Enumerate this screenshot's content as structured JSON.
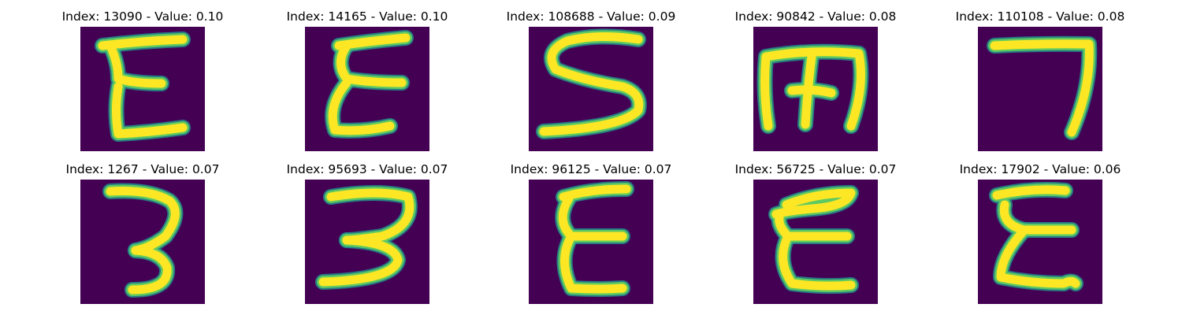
{
  "figure": {
    "background": "#ffffff",
    "text_color": "#000000",
    "colormap": "viridis",
    "colormap_low": "#440154",
    "colormap_high": "#fde725",
    "panels": [
      {
        "title": "Index: 13090 - Value: 0.10",
        "index": 13090,
        "value": 0.1,
        "glyph": "E"
      },
      {
        "title": "Index: 14165 - Value: 0.10",
        "index": 14165,
        "value": 0.1,
        "glyph": "E"
      },
      {
        "title": "Index: 108688 - Value: 0.09",
        "index": 108688,
        "value": 0.09,
        "glyph": "S"
      },
      {
        "title": "Index: 90842 - Value: 0.08",
        "index": 90842,
        "value": 0.08,
        "glyph": "m"
      },
      {
        "title": "Index: 110108 - Value: 0.08",
        "index": 110108,
        "value": 0.08,
        "glyph": "7"
      },
      {
        "title": "Index: 1267 - Value: 0.07",
        "index": 1267,
        "value": 0.07,
        "glyph": "3"
      },
      {
        "title": "Index: 95693 - Value: 0.07",
        "index": 95693,
        "value": 0.07,
        "glyph": "3"
      },
      {
        "title": "Index: 96125 - Value: 0.07",
        "index": 96125,
        "value": 0.07,
        "glyph": "E"
      },
      {
        "title": "Index: 56725 - Value: 0.07",
        "index": 56725,
        "value": 0.07,
        "glyph": "E"
      },
      {
        "title": "Index: 17902 - Value: 0.06",
        "index": 17902,
        "value": 0.06,
        "glyph": "E"
      }
    ]
  }
}
